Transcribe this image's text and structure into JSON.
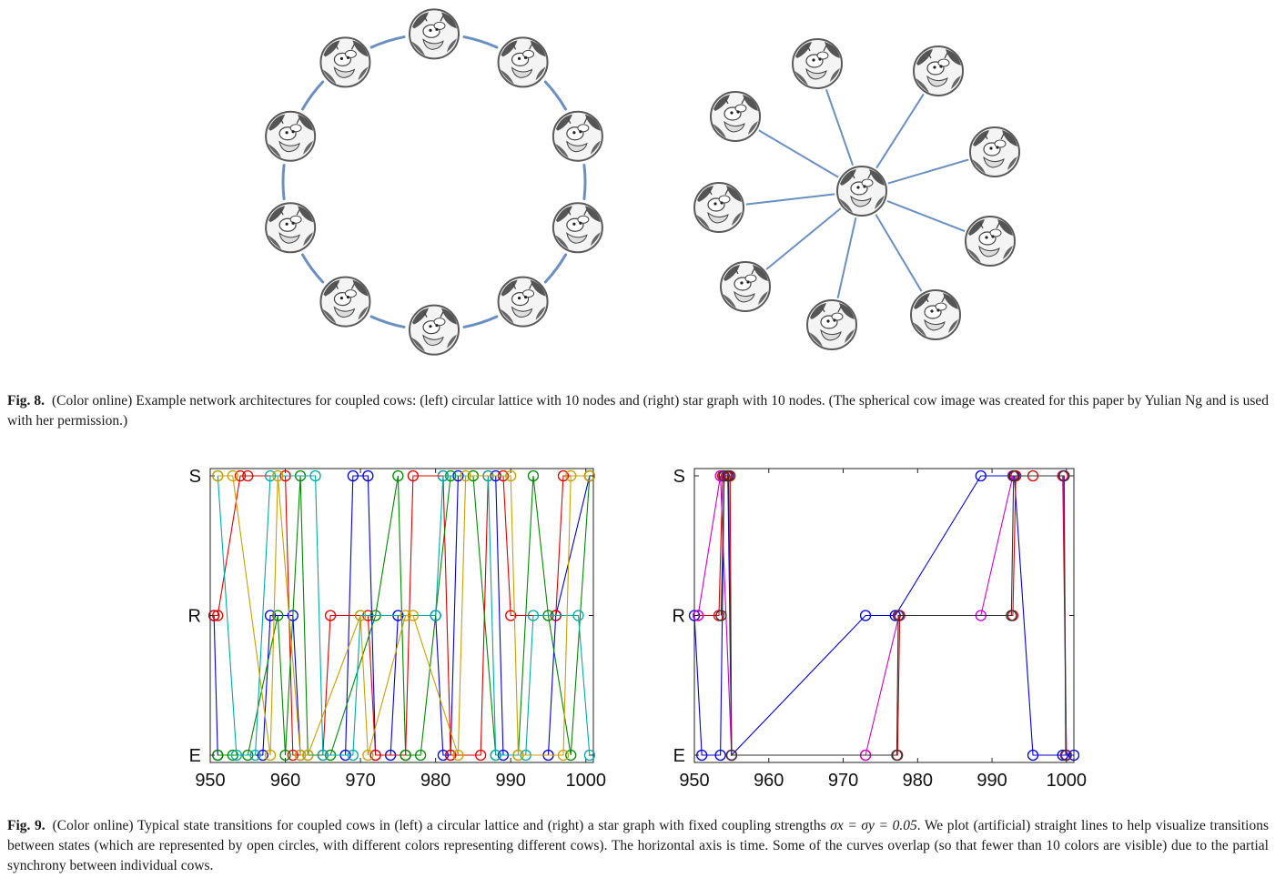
{
  "fig8": {
    "label": "Fig. 8.",
    "caption": "(Color online) Example network architectures for coupled cows: (left) circular lattice with 10 nodes and (right) star graph with 10 nodes. (The spherical cow image was created for this paper by Yulian Ng and is used with her permission.)",
    "ring_nodes": 10,
    "star_nodes": 10,
    "node_icon": "spherical-cow-icon",
    "edge_color": "#6b8fbf"
  },
  "fig9": {
    "label": "Fig. 9.",
    "caption_parts": {
      "before": "(Color online) Typical state transitions for coupled cows in (left) a circular lattice and (right) a star graph with fixed coupling strengths ",
      "math": "σx = σy = 0.05",
      "after": ". We plot (artificial) straight lines to help visualize transitions between states (which are represented by open circles, with different colors representing different cows). The horizontal axis is time. Some of the curves overlap (so that fewer than 10 colors are visible) due to the partial synchrony between individual cows."
    }
  },
  "chart_data": [
    {
      "type": "line",
      "xlim": [
        950,
        1001
      ],
      "x_ticks": [
        950,
        960,
        970,
        980,
        990,
        1000
      ],
      "y_categories": [
        "E",
        "R",
        "S"
      ],
      "series": [
        {
          "color": "#0000dd",
          "x": [
            950.5,
            951,
            957,
            958,
            961,
            962,
            968,
            969,
            971,
            972,
            974,
            975,
            980,
            981,
            982,
            983,
            988,
            989,
            995,
            996,
            1000.5
          ],
          "y": [
            "R",
            "E",
            "E",
            "R",
            "R",
            "E",
            "E",
            "S",
            "S",
            "E",
            "E",
            "R",
            "R",
            "E",
            "E",
            "S",
            "S",
            "E",
            "E",
            "R",
            "S"
          ]
        },
        {
          "color": "#dd0000",
          "x": [
            950.5,
            951,
            954,
            955,
            960,
            961,
            965,
            966,
            971,
            972,
            976,
            977,
            981,
            982,
            986,
            987,
            989,
            990,
            996,
            997,
            1000.5
          ],
          "y": [
            "R",
            "R",
            "S",
            "S",
            "S",
            "E",
            "E",
            "R",
            "R",
            "E",
            "E",
            "S",
            "S",
            "E",
            "E",
            "S",
            "S",
            "R",
            "R",
            "S",
            "S"
          ]
        },
        {
          "color": "#008800",
          "x": [
            951,
            953,
            955,
            959,
            960,
            962,
            963,
            966,
            972,
            975,
            976,
            978,
            982,
            985,
            988,
            991,
            993,
            995,
            998,
            1000.5
          ],
          "y": [
            "E",
            "E",
            "E",
            "R",
            "E",
            "S",
            "E",
            "E",
            "R",
            "S",
            "E",
            "E",
            "S",
            "S",
            "E",
            "E",
            "S",
            "R",
            "E",
            "S"
          ]
        },
        {
          "color": "#00a8a8",
          "x": [
            951,
            953.5,
            956,
            958,
            964,
            965,
            969,
            970,
            980,
            981,
            987,
            988,
            992,
            993,
            999,
            1000.5
          ],
          "y": [
            "S",
            "E",
            "E",
            "S",
            "S",
            "E",
            "E",
            "R",
            "R",
            "S",
            "S",
            "E",
            "E",
            "R",
            "R",
            "E"
          ]
        },
        {
          "color": "#c8a000",
          "x": [
            951,
            953,
            958,
            959,
            962,
            963,
            970,
            971,
            976,
            977,
            983,
            984,
            990,
            991,
            997,
            998,
            1000.5
          ],
          "y": [
            "S",
            "S",
            "E",
            "S",
            "E",
            "E",
            "R",
            "E",
            "R",
            "R",
            "E",
            "S",
            "S",
            "E",
            "E",
            "S",
            "S"
          ]
        }
      ]
    },
    {
      "type": "line",
      "xlim": [
        950,
        1001
      ],
      "x_ticks": [
        950,
        960,
        970,
        980,
        990,
        1000
      ],
      "y_categories": [
        "E",
        "R",
        "S"
      ],
      "series": [
        {
          "color": "#0000dd",
          "x": [
            950,
            951,
            953.5,
            954,
            954.5,
            955,
            973,
            977,
            988.5,
            993,
            995.5,
            999.5,
            1001
          ],
          "y": [
            "R",
            "E",
            "E",
            "S",
            "S",
            "E",
            "R",
            "R",
            "S",
            "S",
            "E",
            "E",
            "E"
          ]
        },
        {
          "color": "#dd0000",
          "x": [
            950.5,
            953.3,
            953.8,
            954.3,
            954.8,
            955,
            973,
            977.3,
            977.6,
            992.8,
            993.2,
            995.5,
            999.5,
            1000
          ],
          "y": [
            "R",
            "R",
            "S",
            "S",
            "S",
            "E",
            "E",
            "E",
            "R",
            "R",
            "S",
            "S",
            "S",
            "E"
          ]
        },
        {
          "color": "#cc00cc",
          "x": [
            950.5,
            953.5,
            955,
            973,
            977.5,
            988.5,
            992.8,
            999.6,
            1000
          ],
          "y": [
            "R",
            "S",
            "E",
            "E",
            "R",
            "R",
            "S",
            "S",
            "E"
          ]
        },
        {
          "color": "#333333",
          "x": [
            953.6,
            954,
            954.6,
            955,
            977.2,
            977.4,
            992.6,
            992.9,
            999.7,
            999.9
          ],
          "y": [
            "R",
            "S",
            "S",
            "E",
            "E",
            "R",
            "R",
            "S",
            "S",
            "E"
          ]
        }
      ]
    }
  ]
}
